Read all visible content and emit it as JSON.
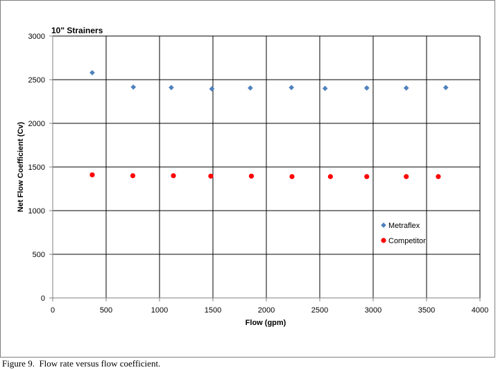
{
  "chart_data": {
    "type": "scatter",
    "title": "10\" Strainers",
    "xlabel": "Flow (gpm)",
    "ylabel": "Net Flow Coefficient (Cv)",
    "xlim": [
      0,
      4000
    ],
    "ylim": [
      0,
      3000
    ],
    "x_ticks": [
      "0",
      "500",
      "1000",
      "1500",
      "2000",
      "2500",
      "3000",
      "3500",
      "4000"
    ],
    "y_ticks": [
      "0",
      "500",
      "1000",
      "1500",
      "2000",
      "2500",
      "3000"
    ],
    "grid": true,
    "legend_position": "right",
    "series": [
      {
        "name": "Metraflex",
        "color": "#4f81bd",
        "marker": "diamond",
        "points": [
          {
            "x": 370,
            "y": 2580
          },
          {
            "x": 755,
            "y": 2415
          },
          {
            "x": 1110,
            "y": 2410
          },
          {
            "x": 1490,
            "y": 2395
          },
          {
            "x": 1850,
            "y": 2405
          },
          {
            "x": 2235,
            "y": 2410
          },
          {
            "x": 2550,
            "y": 2400
          },
          {
            "x": 2940,
            "y": 2405
          },
          {
            "x": 3310,
            "y": 2405
          },
          {
            "x": 3680,
            "y": 2410
          }
        ]
      },
      {
        "name": "Competitor",
        "color": "#ff0000",
        "marker": "circle",
        "points": [
          {
            "x": 370,
            "y": 1410
          },
          {
            "x": 750,
            "y": 1400
          },
          {
            "x": 1130,
            "y": 1400
          },
          {
            "x": 1480,
            "y": 1395
          },
          {
            "x": 1860,
            "y": 1395
          },
          {
            "x": 2240,
            "y": 1390
          },
          {
            "x": 2600,
            "y": 1390
          },
          {
            "x": 2940,
            "y": 1390
          },
          {
            "x": 3310,
            "y": 1390
          },
          {
            "x": 3610,
            "y": 1390
          }
        ]
      }
    ]
  },
  "caption": {
    "label": "Figure 9.",
    "text": "Flow rate versus flow coefficient."
  }
}
